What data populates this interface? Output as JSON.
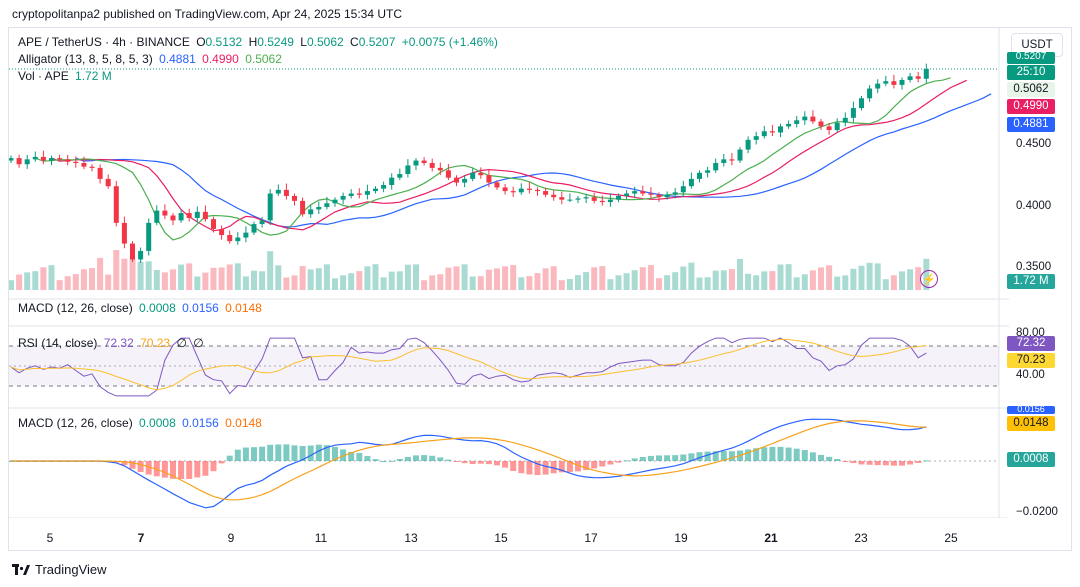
{
  "header": {
    "published": "cryptopolitanpa2 published on TradingView.com, Apr 24, 2025 15:34 UTC"
  },
  "symbol": {
    "title": "APE / TetherUS · 4h · BINANCE",
    "o_label": "O",
    "o": "0.5132",
    "h_label": "H",
    "h": "0.5249",
    "l_label": "L",
    "l": "0.5062",
    "c_label": "C",
    "c": "0.5207",
    "change": "+0.0075 (+1.46%)"
  },
  "alligator": {
    "label": "Alligator (13, 8, 5, 8, 5, 3)",
    "jaw": "0.4881",
    "teeth": "0.4990",
    "lips": "0.5062"
  },
  "volume": {
    "label": "Vol · APE",
    "value": "1.72 M"
  },
  "macd_top": {
    "label": "MACD (12, 26, close)",
    "hist": "0.0008",
    "macd": "0.0156",
    "signal": "0.0148"
  },
  "rsi": {
    "label": "RSI (14, close)",
    "rsi": "72.32",
    "ma": "70.23",
    "v3": "∅",
    "v4": "∅",
    "tag_rsi": "72.32",
    "tag_ma": "70.23",
    "level_top": "80.00",
    "level_mid": "40.00"
  },
  "macd_bottom": {
    "label": "MACD (12, 26, close)",
    "hist": "0.0008",
    "macd": "0.0156",
    "signal": "0.0148",
    "tag_signal": "0.0148",
    "tag_hist": "0.0008",
    "tag_macd_partial": "0.0156",
    "axis_low": "−0.0200"
  },
  "price_axis": {
    "currency": "USDT",
    "ticks": [
      "0.4500",
      "0.4000",
      "0.3500"
    ],
    "tag_price": "0.5207",
    "tag_timer": "25:10",
    "tag_lips": "0.5062",
    "tag_teeth": "0.4990",
    "tag_jaw": "0.4881",
    "tag_vol": "1.72 M"
  },
  "time_axis": {
    "labels": [
      "5",
      "7",
      "9",
      "11",
      "13",
      "15",
      "17",
      "19",
      "21",
      "23",
      "25"
    ]
  },
  "footer": {
    "brand": "TradingView"
  },
  "colors": {
    "up": "#089981",
    "down": "#f23645",
    "jaw": "#2962ff",
    "teeth": "#e91e63",
    "lips": "#4caf50",
    "signal": "#f7a21b",
    "macd": "#2962ff",
    "rsi": "#7e57c2"
  },
  "chart_data": {
    "type": "candlestick",
    "y_range": [
      0.34,
      0.53
    ],
    "candles_close_approx": [
      0.448,
      0.443,
      0.447,
      0.449,
      0.446,
      0.448,
      0.447,
      0.445,
      0.444,
      0.441,
      0.44,
      0.431,
      0.425,
      0.395,
      0.378,
      0.365,
      0.372,
      0.395,
      0.405,
      0.401,
      0.397,
      0.403,
      0.399,
      0.404,
      0.398,
      0.39,
      0.385,
      0.38,
      0.383,
      0.387,
      0.394,
      0.397,
      0.419,
      0.422,
      0.417,
      0.413,
      0.402,
      0.406,
      0.408,
      0.411,
      0.414,
      0.417,
      0.419,
      0.418,
      0.421,
      0.423,
      0.426,
      0.432,
      0.435,
      0.442,
      0.446,
      0.444,
      0.44,
      0.438,
      0.432,
      0.428,
      0.431,
      0.436,
      0.434,
      0.428,
      0.424,
      0.421,
      0.42,
      0.423,
      0.422,
      0.421,
      0.418,
      0.416,
      0.414,
      0.414,
      0.415,
      0.416,
      0.413,
      0.412,
      0.414,
      0.417,
      0.419,
      0.421,
      0.419,
      0.418,
      0.416,
      0.418,
      0.42,
      0.425,
      0.431,
      0.436,
      0.438,
      0.444,
      0.447,
      0.446,
      0.455,
      0.463,
      0.466,
      0.47,
      0.469,
      0.474,
      0.476,
      0.479,
      0.482,
      0.478,
      0.474,
      0.471,
      0.477,
      0.481,
      0.489,
      0.497,
      0.505,
      0.509,
      0.511,
      0.508,
      0.512,
      0.515,
      0.513,
      0.521
    ]
  }
}
